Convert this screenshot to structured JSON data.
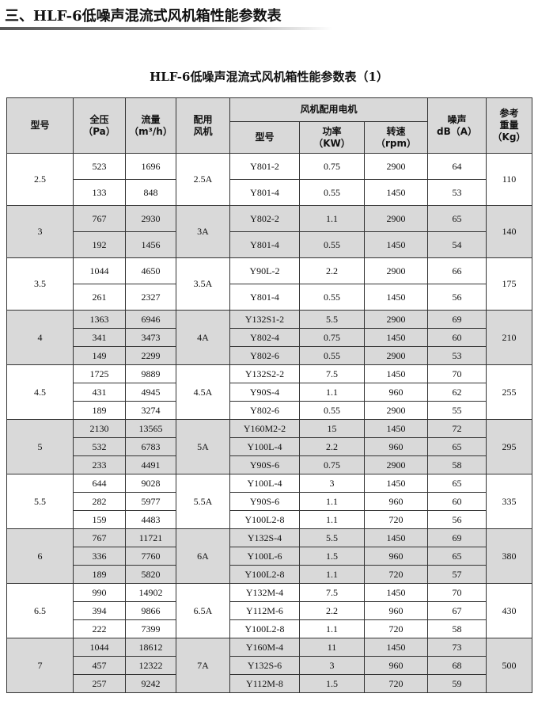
{
  "header": {
    "title": "三、HLF-6低噪声混流式风机箱性能参数表"
  },
  "table": {
    "title": "HLF-6低噪声混流式风机箱性能参数表（1）",
    "columns": {
      "model": "型号",
      "pressure": [
        "全压",
        "（Pa）"
      ],
      "flow": [
        "流量",
        "（m³/h）"
      ],
      "fan": [
        "配用",
        "风机"
      ],
      "motor": "风机配用电机",
      "motor_model": "型号",
      "power": [
        "功率",
        "（KW）"
      ],
      "speed": [
        "转速",
        "（rpm）"
      ],
      "noise": [
        "噪声",
        "dB（A）"
      ],
      "weight": [
        "参考",
        "重量",
        "（Kg）"
      ]
    },
    "groups": [
      {
        "model": "2.5",
        "fan": "2.5A",
        "weight": "110",
        "rows": [
          [
            "523",
            "1696",
            "Y801-2",
            "0.75",
            "2900",
            "64"
          ],
          [
            "133",
            "848",
            "Y801-4",
            "0.55",
            "1450",
            "53"
          ]
        ]
      },
      {
        "model": "3",
        "fan": "3A",
        "weight": "140",
        "rows": [
          [
            "767",
            "2930",
            "Y802-2",
            "1.1",
            "2900",
            "65"
          ],
          [
            "192",
            "1456",
            "Y801-4",
            "0.55",
            "1450",
            "54"
          ]
        ]
      },
      {
        "model": "3.5",
        "fan": "3.5A",
        "weight": "175",
        "rows": [
          [
            "1044",
            "4650",
            "Y90L-2",
            "2.2",
            "2900",
            "66"
          ],
          [
            "261",
            "2327",
            "Y801-4",
            "0.55",
            "1450",
            "56"
          ]
        ]
      },
      {
        "model": "4",
        "fan": "4A",
        "weight": "210",
        "rows": [
          [
            "1363",
            "6946",
            "Y132S1-2",
            "5.5",
            "2900",
            "69"
          ],
          [
            "341",
            "3473",
            "Y802-4",
            "0.75",
            "1450",
            "60"
          ],
          [
            "149",
            "2299",
            "Y802-6",
            "0.55",
            "2900",
            "53"
          ]
        ]
      },
      {
        "model": "4.5",
        "fan": "4.5A",
        "weight": "255",
        "rows": [
          [
            "1725",
            "9889",
            "Y132S2-2",
            "7.5",
            "1450",
            "70"
          ],
          [
            "431",
            "4945",
            "Y90S-4",
            "1.1",
            "960",
            "62"
          ],
          [
            "189",
            "3274",
            "Y802-6",
            "0.55",
            "2900",
            "55"
          ]
        ]
      },
      {
        "model": "5",
        "fan": "5A",
        "weight": "295",
        "rows": [
          [
            "2130",
            "13565",
            "Y160M2-2",
            "15",
            "1450",
            "72"
          ],
          [
            "532",
            "6783",
            "Y100L-4",
            "2.2",
            "960",
            "65"
          ],
          [
            "233",
            "4491",
            "Y90S-6",
            "0.75",
            "2900",
            "58"
          ]
        ]
      },
      {
        "model": "5.5",
        "fan": "5.5A",
        "weight": "335",
        "rows": [
          [
            "644",
            "9028",
            "Y100L-4",
            "3",
            "1450",
            "65"
          ],
          [
            "282",
            "5977",
            "Y90S-6",
            "1.1",
            "960",
            "60"
          ],
          [
            "159",
            "4483",
            "Y100L2-8",
            "1.1",
            "720",
            "56"
          ]
        ]
      },
      {
        "model": "6",
        "fan": "6A",
        "weight": "380",
        "rows": [
          [
            "767",
            "11721",
            "Y132S-4",
            "5.5",
            "1450",
            "69"
          ],
          [
            "336",
            "7760",
            "Y100L-6",
            "1.5",
            "960",
            "65"
          ],
          [
            "189",
            "5820",
            "Y100L2-8",
            "1.1",
            "720",
            "57"
          ]
        ]
      },
      {
        "model": "6.5",
        "fan": "6.5A",
        "weight": "430",
        "rows": [
          [
            "990",
            "14902",
            "Y132M-4",
            "7.5",
            "1450",
            "70"
          ],
          [
            "394",
            "9866",
            "Y112M-6",
            "2.2",
            "960",
            "67"
          ],
          [
            "222",
            "7399",
            "Y100L2-8",
            "1.1",
            "720",
            "58"
          ]
        ]
      },
      {
        "model": "7",
        "fan": "7A",
        "weight": "500",
        "rows": [
          [
            "1044",
            "18612",
            "Y160M-4",
            "11",
            "1450",
            "73"
          ],
          [
            "457",
            "12322",
            "Y132S-6",
            "3",
            "960",
            "68"
          ],
          [
            "257",
            "9242",
            "Y112M-8",
            "1.5",
            "720",
            "59"
          ]
        ]
      }
    ]
  }
}
